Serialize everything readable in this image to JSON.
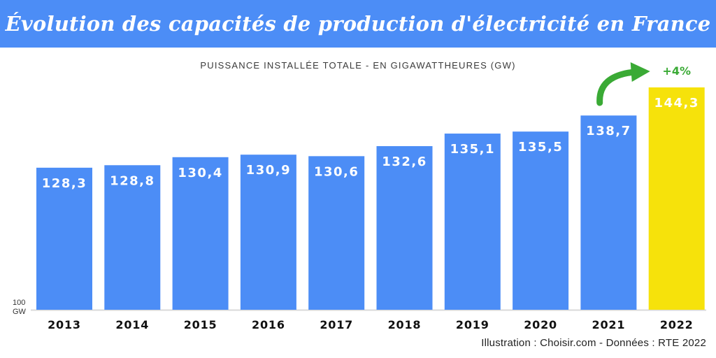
{
  "title": "Évolution des capacités de production d'électricité en France",
  "subtitle": "PUISSANCE INSTALLÉE TOTALE - EN GIGAWATTHEURES (GW)",
  "axis_min": {
    "value": "100",
    "unit": "GW"
  },
  "source": "Illustration : Choisir.com - Données : RTE 2022",
  "colors": {
    "banner": "#4c8df6",
    "bar": "#4c8df6",
    "highlight": "#f6e20b",
    "arrow": "#3aaa35",
    "baseline": "#d9d9d9"
  },
  "chart_data": {
    "type": "bar",
    "categories": [
      "2013",
      "2014",
      "2015",
      "2016",
      "2017",
      "2018",
      "2019",
      "2020",
      "2021",
      "2022"
    ],
    "values": [
      128.3,
      128.8,
      130.4,
      130.9,
      130.6,
      132.6,
      135.1,
      135.5,
      138.7,
      144.3
    ],
    "value_labels": [
      "128,3",
      "128,8",
      "130,4",
      "130,9",
      "130,6",
      "132,6",
      "135,1",
      "135,5",
      "138,7",
      "144,3"
    ],
    "highlight_index": 9,
    "annotation": "+4%",
    "ylim": [
      100,
      144.3
    ],
    "grid": false,
    "legend": "none"
  }
}
